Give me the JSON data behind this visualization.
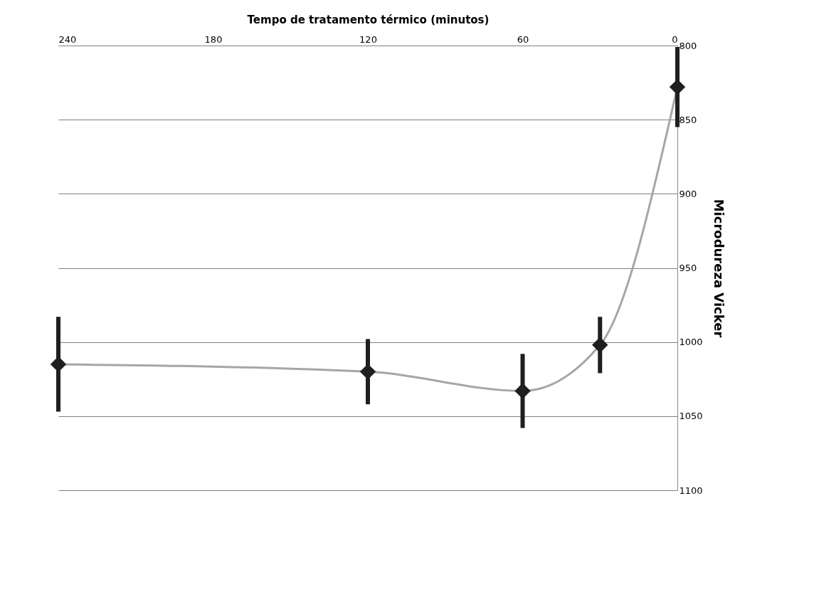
{
  "chart_data": {
    "type": "line",
    "xlabel": "Tempo de tratamento térmico (minutos)",
    "ylabel": "Microdureza Vicker",
    "x": [
      0,
      30,
      60,
      120,
      240
    ],
    "series": [
      {
        "color": "#a6a6a6",
        "values": [
          828,
          1002,
          1033,
          1020,
          1015
        ],
        "errors": [
          27,
          19,
          25,
          22,
          32
        ]
      }
    ],
    "marker": "diamond",
    "line_style": "solid",
    "xlim": [
      240,
      0
    ],
    "xticks": [
      0,
      60,
      120,
      180,
      240
    ],
    "ylim": [
      1100,
      800
    ],
    "yticks": [
      800,
      850,
      900,
      950,
      1000,
      1050,
      1100
    ],
    "grid": "y"
  }
}
